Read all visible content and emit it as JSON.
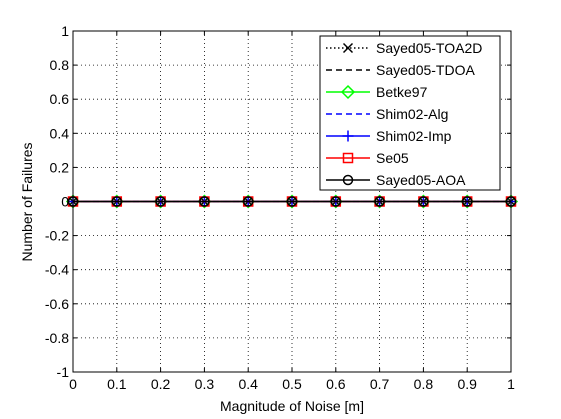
{
  "chart_data": {
    "type": "line",
    "title": "",
    "xlabel": "Magnitude of Noise [m]",
    "ylabel": "Number of Failures",
    "xlim": [
      0,
      1
    ],
    "ylim": [
      -1,
      1
    ],
    "xticks": [
      0,
      0.1,
      0.2,
      0.3,
      0.4,
      0.5,
      0.6,
      0.7,
      0.8,
      0.9,
      1
    ],
    "xtick_labels": [
      "0",
      "0.1",
      "0.2",
      "0.3",
      "0.4",
      "0.5",
      "0.6",
      "0.7",
      "0.8",
      "0.9",
      "1"
    ],
    "yticks": [
      -1,
      -0.8,
      -0.6,
      -0.4,
      -0.2,
      0,
      0.2,
      0.4,
      0.6,
      0.8,
      1
    ],
    "ytick_labels": [
      "-1",
      "-0.8",
      "-0.6",
      "-0.4",
      "-0.2",
      "0",
      "0.2",
      "0.4",
      "0.6",
      "0.8",
      "1"
    ],
    "grid": true,
    "legend_position": "top-right",
    "x": [
      0,
      0.1,
      0.2,
      0.3,
      0.4,
      0.5,
      0.6,
      0.7,
      0.8,
      0.9,
      1
    ],
    "series": [
      {
        "name": "Sayed05-TOA2D",
        "color": "#000000",
        "dash": "dotted",
        "marker": "x",
        "values": [
          0,
          0,
          0,
          0,
          0,
          0,
          0,
          0,
          0,
          0,
          0
        ]
      },
      {
        "name": "Sayed05-TDOA",
        "color": "#000000",
        "dash": "dashed",
        "marker": "none",
        "values": [
          0,
          0,
          0,
          0,
          0,
          0,
          0,
          0,
          0,
          0,
          0
        ]
      },
      {
        "name": "Betke97",
        "color": "#00ff00",
        "dash": "solid",
        "marker": "diamond",
        "values": [
          0,
          0,
          0,
          0,
          0,
          0,
          0,
          0,
          0,
          0,
          0
        ]
      },
      {
        "name": "Shim02-Alg",
        "color": "#0000ff",
        "dash": "dashed",
        "marker": "none",
        "values": [
          0,
          0,
          0,
          0,
          0,
          0,
          0,
          0,
          0,
          0,
          0
        ]
      },
      {
        "name": "Shim02-Imp",
        "color": "#0000ff",
        "dash": "solid",
        "marker": "plus",
        "values": [
          0,
          0,
          0,
          0,
          0,
          0,
          0,
          0,
          0,
          0,
          0
        ]
      },
      {
        "name": "Se05",
        "color": "#ff0000",
        "dash": "solid",
        "marker": "square",
        "values": [
          0,
          0,
          0,
          0,
          0,
          0,
          0,
          0,
          0,
          0,
          0
        ]
      },
      {
        "name": "Sayed05-AOA",
        "color": "#000000",
        "dash": "solid",
        "marker": "circle",
        "values": [
          0,
          0,
          0,
          0,
          0,
          0,
          0,
          0,
          0,
          0,
          0
        ]
      }
    ]
  }
}
